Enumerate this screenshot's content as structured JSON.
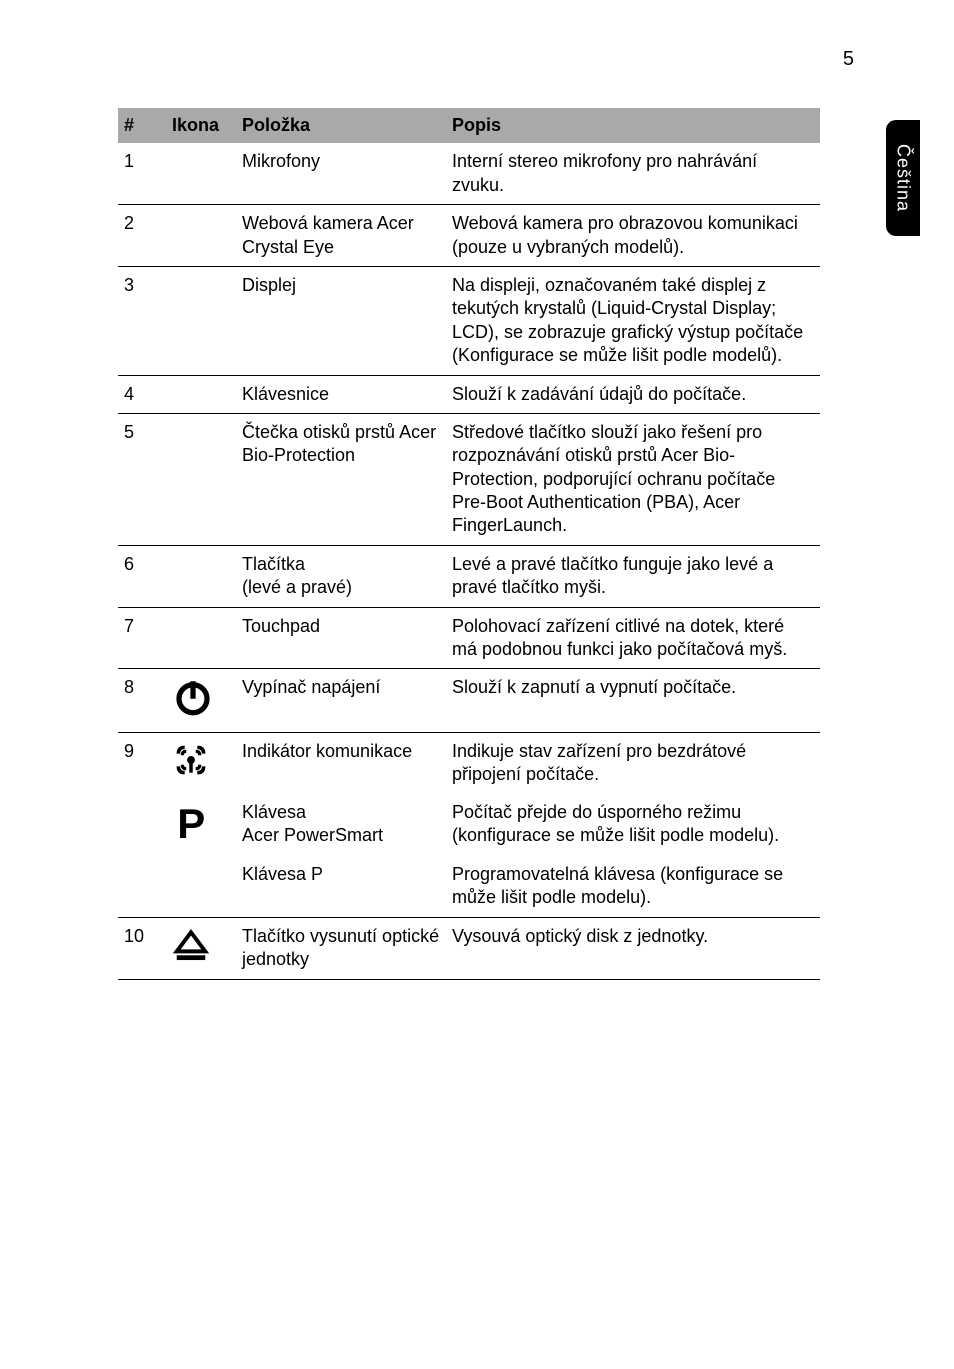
{
  "page_number": "5",
  "side_tab_label": "Čeština",
  "table": {
    "header_bg": "#a9a9a9",
    "border_color": "#000000",
    "font_size_pt": 14,
    "columns": {
      "num": "#",
      "icon": "Ikona",
      "item": "Položka",
      "desc": "Popis"
    },
    "rows": [
      {
        "num": "1",
        "icon": null,
        "item": "Mikrofony",
        "desc": "Interní stereo mikrofony pro nahrávání zvuku."
      },
      {
        "num": "2",
        "icon": null,
        "item": "Webová kamera Acer Crystal Eye",
        "desc": "Webová kamera pro obrazovou komunikaci (pouze u vybraných modelů)."
      },
      {
        "num": "3",
        "icon": null,
        "item": "Displej",
        "desc": "Na displeji, označovaném také displej z tekutých krystalů (Liquid-Crystal Display; LCD), se zobrazuje grafický výstup počítače (Konfigurace se může lišit podle modelů)."
      },
      {
        "num": "4",
        "icon": null,
        "item": "Klávesnice",
        "desc": "Slouží k zadávání údajů do počítače."
      },
      {
        "num": "5",
        "icon": null,
        "item": "Čtečka otisků prstů Acer Bio-Protection",
        "desc": "Středové tlačítko slouží jako řešení pro rozpoznávání otisků prstů Acer Bio-Protection, podporující ochranu počítače Pre-Boot Authentication (PBA), Acer FingerLaunch."
      },
      {
        "num": "6",
        "icon": null,
        "item": "Tlačítka\n(levé a pravé)",
        "desc": "Levé a pravé tlačítko funguje jako levé a pravé tlačítko myši."
      },
      {
        "num": "7",
        "icon": null,
        "item": "Touchpad",
        "desc": "Polohovací zařízení citlivé na dotek, které má podobnou funkci jako počítačová myš."
      },
      {
        "num": "8",
        "icon": "power-icon",
        "item": "Vypínač napájení",
        "desc": "Slouží k zapnutí a vypnutí počítače."
      },
      {
        "num": "9",
        "icon": "wireless-icon",
        "item": "Indikátor komunikace",
        "desc": "Indikuje stav zařízení pro bezdrátové připojení počítače."
      },
      {
        "num": "",
        "icon": "p-icon",
        "item": "Klávesa\nAcer PowerSmart",
        "desc": "Počítač přejde do úsporného režimu (konfigurace se může lišit podle modelu)."
      },
      {
        "num": "",
        "icon": null,
        "item": "Klávesa P",
        "desc": "Programovatelná klávesa (konfigurace se může lišit podle modelu)."
      },
      {
        "num": "10",
        "icon": "eject-icon",
        "item": "Tlačítko vysunutí optické jednotky",
        "desc": "Vysouvá optický disk z jednotky."
      }
    ]
  },
  "colors": {
    "page_bg": "#ffffff",
    "text": "#000000",
    "tab_bg": "#000000",
    "tab_text": "#ffffff"
  }
}
